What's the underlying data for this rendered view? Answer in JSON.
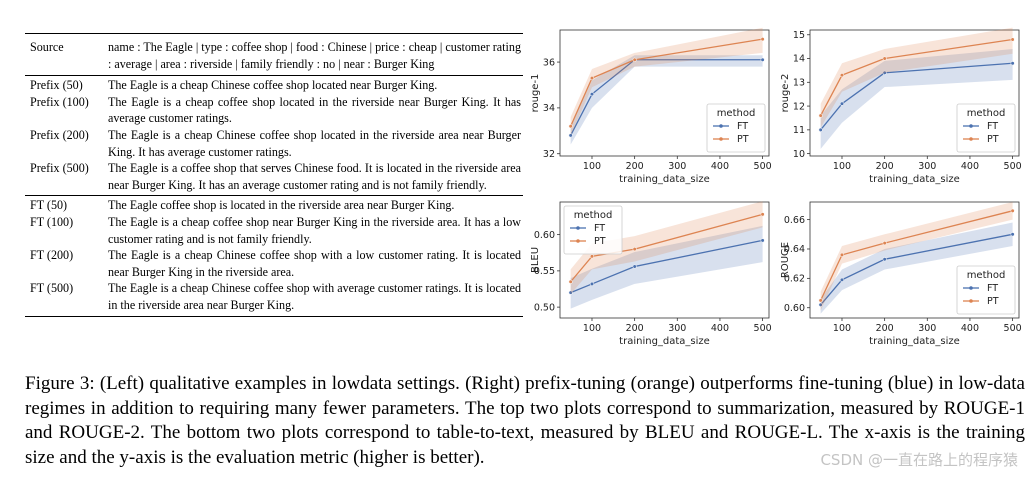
{
  "table": {
    "header": {
      "label": "Source",
      "text": "name : The Eagle | type : coffee shop | food : Chinese | price : cheap | customer rating : average | area : riverside | family friendly : no | near : Burger King"
    },
    "prefix_rows": [
      {
        "label": "Prefix (50)",
        "text": "The Eagle is a cheap Chinese coffee shop located near Burger King."
      },
      {
        "label": "Prefix (100)",
        "text": "The Eagle is a cheap coffee shop located in the riverside near Burger King. It has average customer ratings."
      },
      {
        "label": "Prefix (200)",
        "text": "The Eagle is a cheap Chinese coffee shop located in the riverside area near Burger King. It has average customer ratings."
      },
      {
        "label": "Prefix (500)",
        "text": "The Eagle is a coffee shop that serves Chinese food. It is located in the riverside area near Burger King. It has an average customer rating and is not family friendly."
      }
    ],
    "ft_rows": [
      {
        "label": "FT (50)",
        "text": "The Eagle coffee shop is located in the riverside area near Burger King."
      },
      {
        "label": "FT (100)",
        "text": "The Eagle is a cheap coffee shop near Burger King in the riverside area. It has a low customer rating and is not family friendly."
      },
      {
        "label": "FT (200)",
        "text": "The Eagle is a cheap Chinese coffee shop with a low customer rating. It is located near Burger King in the riverside area."
      },
      {
        "label": "FT (500)",
        "text": "The Eagle is a cheap Chinese coffee shop with average customer ratings. It is located in the riverside area near Burger King."
      }
    ]
  },
  "chart_data": [
    {
      "type": "line",
      "xlabel": "training_data_size",
      "ylabel": "rouge-1",
      "x": [
        50,
        100,
        200,
        500
      ],
      "xlim": [
        25,
        515
      ],
      "xticks": [
        100,
        200,
        300,
        400,
        500
      ],
      "ylim": [
        31.9,
        37.4
      ],
      "yticks": [
        32,
        34,
        36
      ],
      "legend": {
        "title": "method",
        "position": "lower-right"
      },
      "series": [
        {
          "name": "FT",
          "color": "#4c72b0",
          "values": [
            32.8,
            34.6,
            36.1,
            36.1
          ],
          "lower": [
            32.4,
            34.0,
            35.8,
            35.8
          ],
          "upper": [
            33.2,
            35.2,
            36.3,
            36.3
          ]
        },
        {
          "name": "PT",
          "color": "#dd8452",
          "values": [
            33.2,
            35.3,
            36.1,
            37.0
          ],
          "lower": [
            32.8,
            34.9,
            35.8,
            36.4
          ],
          "upper": [
            33.6,
            35.7,
            36.4,
            37.5
          ]
        }
      ]
    },
    {
      "type": "line",
      "xlabel": "training_data_size",
      "ylabel": "rouge-2",
      "x": [
        50,
        100,
        200,
        500
      ],
      "xlim": [
        25,
        515
      ],
      "xticks": [
        100,
        200,
        300,
        400,
        500
      ],
      "ylim": [
        9.9,
        15.2
      ],
      "yticks": [
        10,
        11,
        12,
        13,
        14,
        15
      ],
      "legend": {
        "title": "method",
        "position": "lower-right"
      },
      "series": [
        {
          "name": "FT",
          "color": "#4c72b0",
          "values": [
            11.0,
            12.1,
            13.4,
            13.8
          ],
          "lower": [
            10.2,
            11.3,
            12.8,
            13.1
          ],
          "upper": [
            11.6,
            12.7,
            13.9,
            14.4
          ]
        },
        {
          "name": "PT",
          "color": "#dd8452",
          "values": [
            11.6,
            13.3,
            14.0,
            14.8
          ],
          "lower": [
            11.1,
            12.6,
            13.4,
            14.2
          ],
          "upper": [
            12.1,
            13.8,
            14.4,
            15.3
          ]
        }
      ]
    },
    {
      "type": "line",
      "xlabel": "training_data_size",
      "ylabel": "BLEU",
      "x": [
        50,
        100,
        200,
        500
      ],
      "xlim": [
        25,
        515
      ],
      "xticks": [
        100,
        200,
        300,
        400,
        500
      ],
      "ylim": [
        0.485,
        0.645
      ],
      "yticks": [
        0.5,
        0.55,
        0.6
      ],
      "legend": {
        "title": "method",
        "position": "top-left"
      },
      "series": [
        {
          "name": "FT",
          "color": "#4c72b0",
          "values": [
            0.52,
            0.532,
            0.556,
            0.592
          ],
          "lower": [
            0.498,
            0.51,
            0.532,
            0.562
          ],
          "upper": [
            0.54,
            0.553,
            0.576,
            0.612
          ]
        },
        {
          "name": "PT",
          "color": "#dd8452",
          "values": [
            0.535,
            0.57,
            0.58,
            0.628
          ],
          "lower": [
            0.518,
            0.552,
            0.563,
            0.61
          ],
          "upper": [
            0.552,
            0.588,
            0.598,
            0.646
          ]
        }
      ]
    },
    {
      "type": "line",
      "xlabel": "training_data_size",
      "ylabel": "ROUGE",
      "x": [
        50,
        100,
        200,
        500
      ],
      "xlim": [
        25,
        515
      ],
      "xticks": [
        100,
        200,
        300,
        400,
        500
      ],
      "ylim": [
        0.593,
        0.672
      ],
      "yticks": [
        0.6,
        0.62,
        0.64,
        0.66
      ],
      "legend": {
        "title": "method",
        "position": "lower-right"
      },
      "series": [
        {
          "name": "FT",
          "color": "#4c72b0",
          "values": [
            0.602,
            0.619,
            0.633,
            0.65
          ],
          "lower": [
            0.596,
            0.612,
            0.626,
            0.642
          ],
          "upper": [
            0.606,
            0.626,
            0.64,
            0.658
          ]
        },
        {
          "name": "PT",
          "color": "#dd8452",
          "values": [
            0.605,
            0.636,
            0.644,
            0.666
          ],
          "lower": [
            0.598,
            0.63,
            0.639,
            0.66
          ],
          "upper": [
            0.611,
            0.642,
            0.65,
            0.672
          ]
        }
      ]
    }
  ],
  "caption": "Figure 3: (Left) qualitative examples in lowdata settings. (Right) prefix-tuning (orange) outperforms fine-tuning (blue) in low-data regimes in addition to requiring many fewer parameters. The top two plots correspond to summarization, measured by ROUGE-1 and ROUGE-2. The bottom two plots correspond to table-to-text, measured by BLEU and ROUGE-L. The x-axis is the training size and the y-axis is the evaluation metric (higher is better).",
  "watermark": "CSDN @一直在路上的程序猿"
}
